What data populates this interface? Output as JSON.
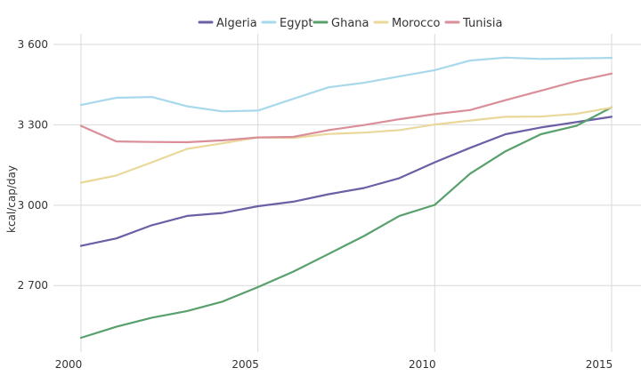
{
  "chart_data": {
    "type": "line",
    "title": "",
    "xlabel": "",
    "ylabel": "kcal/cap/day",
    "x": [
      2000,
      2001,
      2002,
      2003,
      2004,
      2005,
      2006,
      2007,
      2008,
      2009,
      2010,
      2011,
      2012,
      2013,
      2014,
      2015
    ],
    "xticks": [
      2000,
      2005,
      2010,
      2015
    ],
    "xtick_labels": [
      "2000",
      "2005",
      "2010",
      "2015"
    ],
    "yticks": [
      2700,
      3000,
      3300,
      3600
    ],
    "ytick_labels": [
      "2 700",
      "3 000",
      "3 300",
      "3 600"
    ],
    "xlim": [
      2000,
      2015
    ],
    "ylim": [
      2505,
      3600
    ],
    "grid": true,
    "legend_position": "top-center",
    "series": [
      {
        "name": "Algeria",
        "color": "#6b5fa5",
        "values": [
          2848,
          2876,
          2925,
          2960,
          2971,
          2996,
          3013,
          3041,
          3064,
          3101,
          3160,
          3214,
          3265,
          3290,
          3310,
          3330
        ]
      },
      {
        "name": "Egypt",
        "color": "#a8d8ec",
        "values": [
          3374,
          3401,
          3404,
          3369,
          3350,
          3353,
          3397,
          3440,
          3457,
          3481,
          3504,
          3540,
          3551,
          3546,
          3548,
          3550
        ]
      },
      {
        "name": "Ghana",
        "color": "#58a06c",
        "values": [
          2505,
          2546,
          2580,
          2605,
          2640,
          2694,
          2752,
          2818,
          2885,
          2960,
          3001,
          3118,
          3201,
          3265,
          3296,
          3365
        ]
      },
      {
        "name": "Morocco",
        "color": "#ead89a",
        "values": [
          3084,
          3111,
          3160,
          3210,
          3231,
          3253,
          3251,
          3266,
          3271,
          3280,
          3301,
          3316,
          3330,
          3331,
          3341,
          3364
        ]
      },
      {
        "name": "Tunisia",
        "color": "#d98e99",
        "values": [
          3296,
          3238,
          3236,
          3235,
          3242,
          3253,
          3255,
          3280,
          3299,
          3321,
          3340,
          3355,
          3392,
          3427,
          3463,
          3491
        ]
      }
    ]
  }
}
